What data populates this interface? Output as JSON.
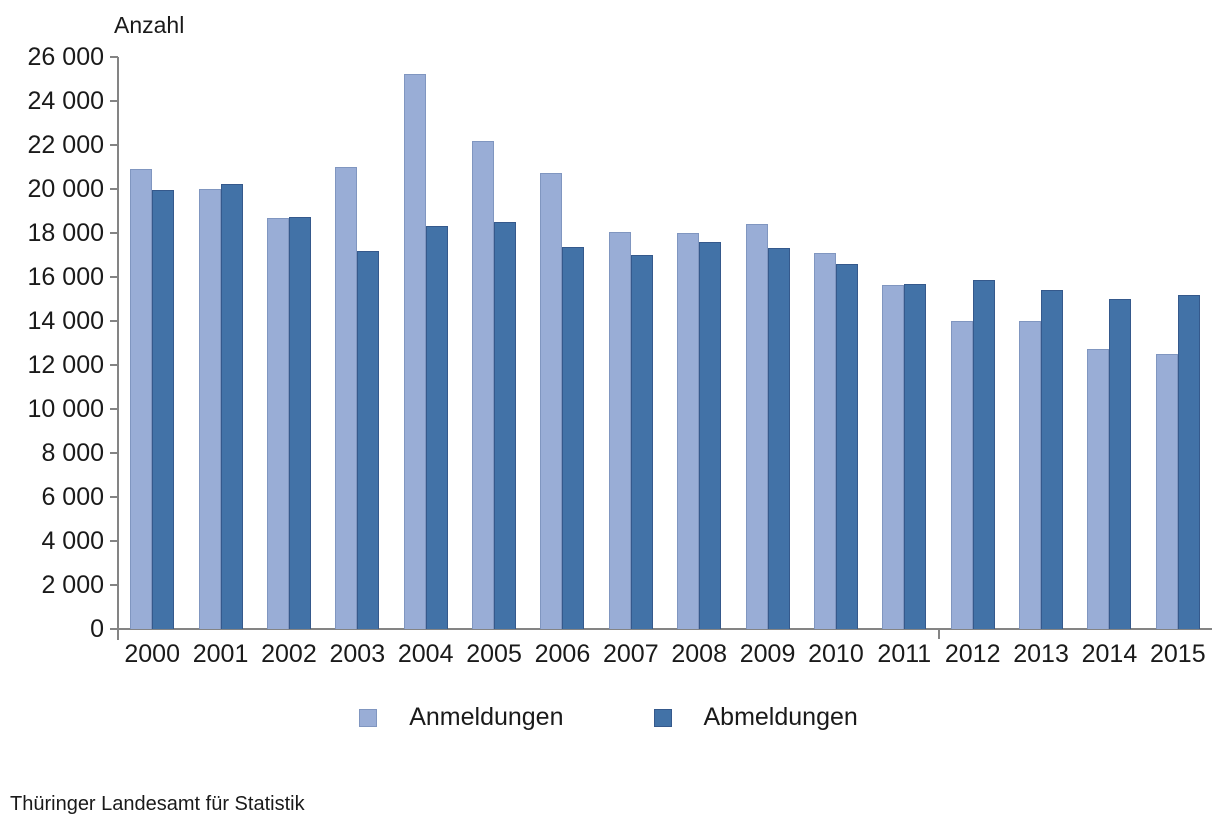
{
  "axis_title": "Anzahl",
  "source": "Thüringer Landesamt für Statistik",
  "colors": {
    "series_anmeldungen_fill": "#99ADD6",
    "series_anmeldungen_border": "#8096C0",
    "series_abmeldungen_fill": "#4272A7",
    "series_abmeldungen_border": "#35598C",
    "axis": "#848484",
    "text": "#1a1a1a",
    "background": "#ffffff"
  },
  "chart_data": {
    "type": "bar",
    "title": "",
    "xlabel": "",
    "ylabel": "Anzahl",
    "ylim": [
      0,
      26000
    ],
    "ytick_step": 2000,
    "ytick_labels": [
      "0",
      "2 000",
      "4 000",
      "6 000",
      "8 000",
      "10 000",
      "12 000",
      "14 000",
      "16 000",
      "18 000",
      "20 000",
      "22 000",
      "24 000",
      "26 000"
    ],
    "grid": false,
    "legend_position": "bottom-center",
    "categories": [
      "2000",
      "2001",
      "2002",
      "2003",
      "2004",
      "2005",
      "2006",
      "2007",
      "2008",
      "2009",
      "2010",
      "2011",
      "2012",
      "2013",
      "2014",
      "2015"
    ],
    "series": [
      {
        "name": "Anmeldungen",
        "color": "#99ADD6",
        "values": [
          20900,
          20000,
          18700,
          21000,
          25250,
          22200,
          20750,
          18050,
          18000,
          18400,
          17100,
          15650,
          14000,
          14000,
          12750,
          12500
        ]
      },
      {
        "name": "Abmeldungen",
        "color": "#4272A7",
        "values": [
          19950,
          20250,
          18750,
          17200,
          18300,
          18500,
          17350,
          17000,
          17600,
          17300,
          16600,
          15700,
          15850,
          15400,
          15000,
          15200
        ]
      }
    ]
  }
}
